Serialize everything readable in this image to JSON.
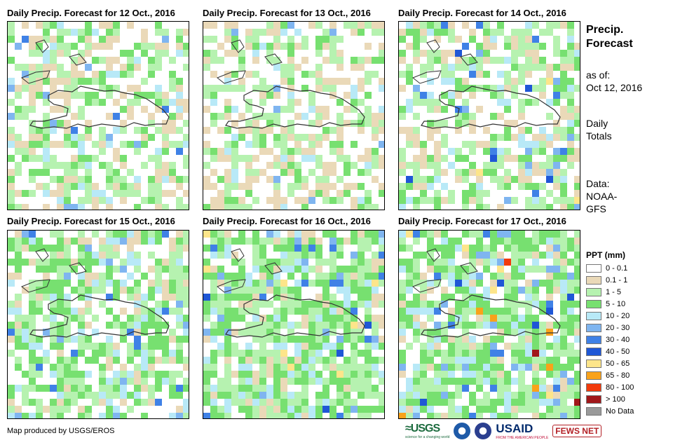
{
  "panels": [
    {
      "title": "Daily Precip. Forecast for 12 Oct., 2016"
    },
    {
      "title": "Daily Precip. Forecast for 13 Oct., 2016"
    },
    {
      "title": "Daily Precip. Forecast for 14 Oct., 2016"
    },
    {
      "title": "Daily Precip. Forecast for 15 Oct., 2016"
    },
    {
      "title": "Daily Precip. Forecast for 16 Oct., 2016"
    },
    {
      "title": "Daily Precip. Forecast for 17 Oct., 2016"
    }
  ],
  "sidebar": {
    "title_line1": "Precip.",
    "title_line2": "Forecast",
    "asof_label": "as of:",
    "asof_date": "Oct 12, 2016",
    "totals_line1": "Daily",
    "totals_line2": "Totals",
    "source_line1": "Data:",
    "source_line2": "NOAA-",
    "source_line3": "GFS"
  },
  "legend": {
    "title": "PPT (mm)",
    "items": [
      {
        "label": "0 - 0.1",
        "color": "#ffffff"
      },
      {
        "label": "0.1 - 1",
        "color": "#ead9b8"
      },
      {
        "label": "1 - 5",
        "color": "#b6f2b0"
      },
      {
        "label": "5 - 10",
        "color": "#77e070"
      },
      {
        "label": "10 - 20",
        "color": "#b8e9f7"
      },
      {
        "label": "20 - 30",
        "color": "#7fb5f0"
      },
      {
        "label": "30 - 40",
        "color": "#3f81e6"
      },
      {
        "label": "40 - 50",
        "color": "#1f57d6"
      },
      {
        "label": "50 - 65",
        "color": "#fde58a"
      },
      {
        "label": "65 - 80",
        "color": "#f9a21a"
      },
      {
        "label": "80 - 100",
        "color": "#f23a0c"
      },
      {
        "label": "> 100",
        "color": "#a1171a"
      },
      {
        "label": "No Data",
        "color": "#9a9a9a"
      }
    ]
  },
  "footer": {
    "credit": "Map produced by USGS/EROS",
    "logo_usgs": "≈USGS",
    "logo_usgs_tag": "science for a changing world",
    "logo_usaid": "USAID",
    "logo_usaid_tag": "FROM THE AMERICAN PEOPLE",
    "logo_fews": "FEWS NET"
  }
}
